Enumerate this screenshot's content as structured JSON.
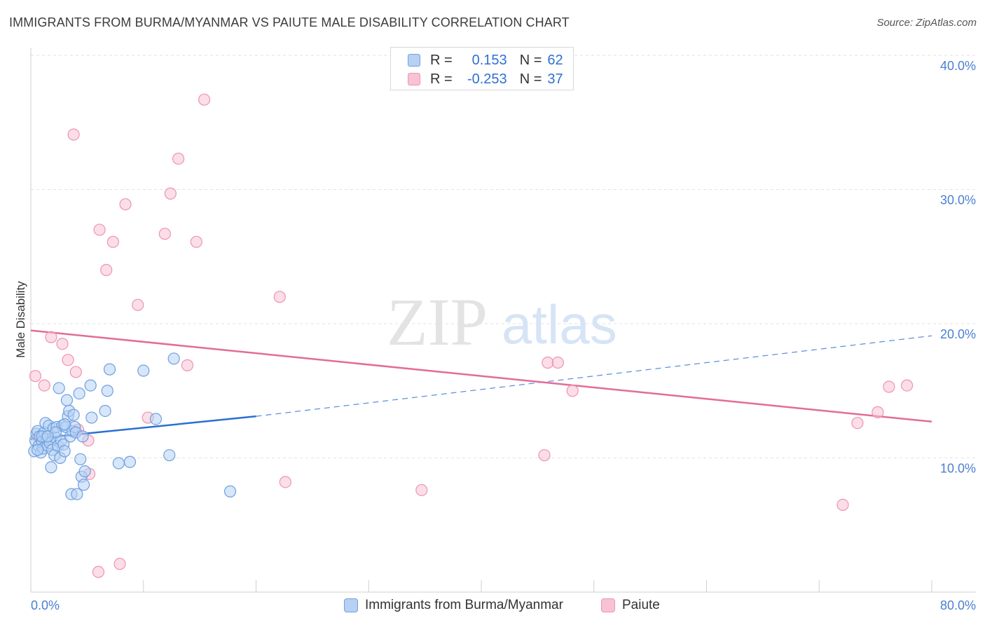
{
  "title": "IMMIGRANTS FROM BURMA/MYANMAR VS PAIUTE MALE DISABILITY CORRELATION CHART",
  "source": "Source: ZipAtlas.com",
  "watermark": {
    "zip": "ZIP",
    "atlas": "atlas"
  },
  "colors": {
    "blue_fill": "#b7d1f3",
    "blue_stroke": "#6f9fe0",
    "blue_line": "#2a6fd4",
    "pink_fill": "#f7c3d4",
    "pink_stroke": "#ee93b1",
    "pink_line": "#e36c97",
    "tick_text": "#4a7fd1",
    "grid": "#e2e2e2"
  },
  "stats": {
    "blue": {
      "r_label": "R =",
      "r_value": "0.153",
      "n_label": "N =",
      "n_value": "62"
    },
    "pink": {
      "r_label": "R =",
      "r_value": "-0.253",
      "n_label": "N =",
      "n_value": "37"
    }
  },
  "legend": {
    "blue": "Immigrants from Burma/Myanmar",
    "pink": "Paiute"
  },
  "chart_data": {
    "type": "scatter",
    "title": "IMMIGRANTS FROM BURMA/MYANMAR VS PAIUTE MALE DISABILITY CORRELATION CHART",
    "xlabel": "",
    "ylabel": "Male Disability",
    "xlim": [
      0,
      80
    ],
    "ylim": [
      0,
      40
    ],
    "x_tick_labels": [
      "0.0%",
      "80.0%"
    ],
    "y_ticks": [
      10,
      20,
      30,
      40
    ],
    "y_tick_labels": [
      "10.0%",
      "20.0%",
      "30.0%",
      "40.0%"
    ],
    "grid": true,
    "legend_position": "bottom",
    "series": [
      {
        "name": "Immigrants from Burma/Myanmar",
        "color": "#6f9fe0",
        "r": 0.153,
        "n": 62,
        "trend": {
          "x0": 0,
          "y0": 11.4,
          "x1": 20,
          "y1": 13.1,
          "dashed_to_x": 80,
          "dashed_to_y": 19.1
        },
        "points": [
          [
            0.3,
            10.5
          ],
          [
            0.4,
            11.3
          ],
          [
            0.5,
            11.8
          ],
          [
            0.6,
            12.0
          ],
          [
            0.7,
            10.9
          ],
          [
            0.8,
            11.6
          ],
          [
            0.9,
            10.4
          ],
          [
            1.0,
            11.2
          ],
          [
            1.1,
            10.7
          ],
          [
            1.2,
            11.9
          ],
          [
            1.3,
            12.6
          ],
          [
            1.4,
            11.4
          ],
          [
            1.5,
            10.9
          ],
          [
            1.6,
            12.4
          ],
          [
            1.7,
            11.1
          ],
          [
            1.8,
            9.3
          ],
          [
            1.9,
            10.6
          ],
          [
            2.0,
            12.2
          ],
          [
            2.1,
            10.2
          ],
          [
            2.2,
            11.5
          ],
          [
            2.3,
            12.3
          ],
          [
            2.4,
            10.9
          ],
          [
            2.5,
            15.2
          ],
          [
            2.6,
            10.0
          ],
          [
            2.7,
            11.3
          ],
          [
            2.8,
            12.4
          ],
          [
            2.9,
            11.0
          ],
          [
            3.0,
            10.5
          ],
          [
            3.1,
            12.3
          ],
          [
            3.2,
            14.3
          ],
          [
            3.3,
            13.1
          ],
          [
            3.4,
            13.5
          ],
          [
            3.5,
            11.6
          ],
          [
            3.6,
            7.3
          ],
          [
            3.7,
            12.0
          ],
          [
            3.8,
            13.2
          ],
          [
            3.9,
            12.3
          ],
          [
            4.0,
            11.9
          ],
          [
            4.1,
            7.3
          ],
          [
            4.3,
            14.8
          ],
          [
            4.4,
            9.9
          ],
          [
            4.5,
            8.6
          ],
          [
            4.6,
            11.6
          ],
          [
            4.7,
            8.0
          ],
          [
            4.8,
            9.0
          ],
          [
            5.3,
            15.4
          ],
          [
            5.4,
            13.0
          ],
          [
            6.6,
            13.5
          ],
          [
            6.8,
            15.0
          ],
          [
            7.0,
            16.6
          ],
          [
            7.8,
            9.6
          ],
          [
            8.8,
            9.7
          ],
          [
            10.0,
            16.5
          ],
          [
            11.1,
            12.9
          ],
          [
            12.3,
            10.2
          ],
          [
            12.7,
            17.4
          ],
          [
            17.7,
            7.5
          ],
          [
            1.0,
            11.6
          ],
          [
            2.2,
            11.9
          ],
          [
            0.6,
            10.6
          ],
          [
            3.0,
            12.5
          ],
          [
            1.5,
            11.6
          ]
        ]
      },
      {
        "name": "Paiute",
        "color": "#ee93b1",
        "r": -0.253,
        "n": 37,
        "trend": {
          "x0": 0,
          "y0": 19.5,
          "x1": 80,
          "y1": 12.7
        },
        "points": [
          [
            0.4,
            16.1
          ],
          [
            1.2,
            15.4
          ],
          [
            1.8,
            19.0
          ],
          [
            2.8,
            18.5
          ],
          [
            3.3,
            17.3
          ],
          [
            4.0,
            16.4
          ],
          [
            4.2,
            12.1
          ],
          [
            5.1,
            11.3
          ],
          [
            5.2,
            8.8
          ],
          [
            3.8,
            34.1
          ],
          [
            6.1,
            27.0
          ],
          [
            6.7,
            24.0
          ],
          [
            7.3,
            26.1
          ],
          [
            7.9,
            2.1
          ],
          [
            8.4,
            28.9
          ],
          [
            9.5,
            21.4
          ],
          [
            10.4,
            13.0
          ],
          [
            11.9,
            26.7
          ],
          [
            12.4,
            29.7
          ],
          [
            13.1,
            32.3
          ],
          [
            13.9,
            16.9
          ],
          [
            14.7,
            26.1
          ],
          [
            15.4,
            36.7
          ],
          [
            22.1,
            22.0
          ],
          [
            22.6,
            8.2
          ],
          [
            34.7,
            7.6
          ],
          [
            45.6,
            10.2
          ],
          [
            45.9,
            17.1
          ],
          [
            46.8,
            17.1
          ],
          [
            48.1,
            15.0
          ],
          [
            72.1,
            6.5
          ],
          [
            73.4,
            12.6
          ],
          [
            75.2,
            13.4
          ],
          [
            76.2,
            15.3
          ],
          [
            77.8,
            15.4
          ],
          [
            6.0,
            1.5
          ],
          [
            0.6,
            11.6
          ]
        ]
      }
    ]
  }
}
